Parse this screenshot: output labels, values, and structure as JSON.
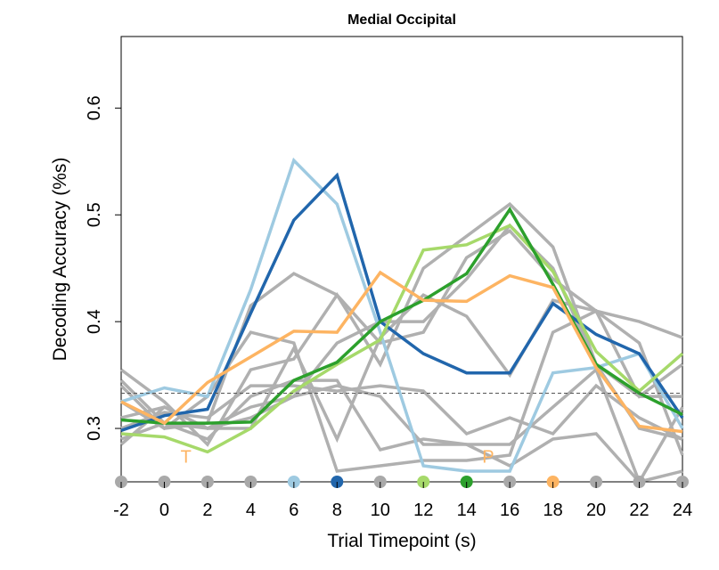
{
  "chart_data": {
    "type": "line",
    "title": "Medial Occipital",
    "xlabel": "Trial Timepoint (s)",
    "ylabel": "Decoding Accuracy (%s)",
    "xlim": [
      -2,
      24
    ],
    "ylim": [
      0.25,
      0.667
    ],
    "xticks": [
      -2,
      0,
      2,
      4,
      6,
      8,
      10,
      12,
      14,
      16,
      18,
      20,
      22,
      24
    ],
    "yticks": [
      0.3,
      0.4,
      0.5,
      0.6
    ],
    "ytick_labels": [
      "0.3",
      "0.4",
      "0.5",
      "0.6"
    ],
    "grid": false,
    "chance_level": 0.333,
    "annotations": [
      {
        "text": "T",
        "x": 1,
        "y": 0.268,
        "color": "#fdb462"
      },
      {
        "text": "P",
        "x": 15,
        "y": 0.268,
        "color": "#fdb462"
      }
    ],
    "x": [
      -2,
      0,
      2,
      4,
      6,
      8,
      10,
      12,
      14,
      16,
      18,
      20,
      22,
      24
    ],
    "timepoint_markers": [
      {
        "x": -2,
        "color": "#a9a9a9"
      },
      {
        "x": 0,
        "color": "#a9a9a9"
      },
      {
        "x": 2,
        "color": "#a9a9a9"
      },
      {
        "x": 4,
        "color": "#a9a9a9"
      },
      {
        "x": 6,
        "color": "#9ecae1"
      },
      {
        "x": 8,
        "color": "#2166ac"
      },
      {
        "x": 10,
        "color": "#a9a9a9"
      },
      {
        "x": 12,
        "color": "#a6d96a"
      },
      {
        "x": 14,
        "color": "#2ca02c"
      },
      {
        "x": 16,
        "color": "#a9a9a9"
      },
      {
        "x": 18,
        "color": "#fdb462"
      },
      {
        "x": 20,
        "color": "#a9a9a9"
      },
      {
        "x": 22,
        "color": "#a9a9a9"
      },
      {
        "x": 24,
        "color": "#a9a9a9"
      }
    ],
    "series": [
      {
        "color": "#b0b0b0",
        "values": [
          0.355,
          0.325,
          0.285,
          0.355,
          0.365,
          0.425,
          0.36,
          0.45,
          0.48,
          0.51,
          0.47,
          0.36,
          0.3,
          0.29
        ]
      },
      {
        "color": "#b0b0b0",
        "values": [
          0.34,
          0.3,
          0.305,
          0.415,
          0.445,
          0.425,
          0.38,
          0.39,
          0.46,
          0.485,
          0.44,
          0.41,
          0.4,
          0.385
        ]
      },
      {
        "color": "#b0b0b0",
        "values": [
          0.325,
          0.3,
          0.33,
          0.39,
          0.38,
          0.26,
          0.265,
          0.27,
          0.27,
          0.275,
          0.39,
          0.41,
          0.33,
          0.36
        ]
      },
      {
        "color": "#b0b0b0",
        "values": [
          0.31,
          0.32,
          0.3,
          0.3,
          0.375,
          0.29,
          0.385,
          0.425,
          0.405,
          0.35,
          0.42,
          0.41,
          0.38,
          0.275
        ]
      },
      {
        "color": "#b0b0b0",
        "values": [
          0.3,
          0.315,
          0.31,
          0.34,
          0.34,
          0.335,
          0.34,
          0.335,
          0.295,
          0.31,
          0.295,
          0.34,
          0.31,
          0.29
        ]
      },
      {
        "color": "#b0b0b0",
        "values": [
          0.29,
          0.305,
          0.29,
          0.33,
          0.345,
          0.345,
          0.28,
          0.29,
          0.285,
          0.285,
          0.32,
          0.355,
          0.25,
          0.26
        ]
      },
      {
        "color": "#b0b0b0",
        "values": [
          0.285,
          0.32,
          0.3,
          0.32,
          0.33,
          0.34,
          0.33,
          0.285,
          0.285,
          0.265,
          0.29,
          0.295,
          0.25,
          0.32
        ]
      },
      {
        "color": "#b0b0b0",
        "values": [
          0.345,
          0.305,
          0.3,
          0.31,
          0.33,
          0.38,
          0.4,
          0.4,
          0.44,
          0.49,
          0.45,
          0.36,
          0.33,
          0.33
        ]
      },
      {
        "color": "#9ecae1",
        "values": [
          0.325,
          0.338,
          0.33,
          0.43,
          0.551,
          0.51,
          0.39,
          0.265,
          0.26,
          0.26,
          0.352,
          0.357,
          0.37,
          0.3
        ]
      },
      {
        "color": "#2166ac",
        "values": [
          0.298,
          0.312,
          0.318,
          0.408,
          0.495,
          0.537,
          0.4,
          0.37,
          0.352,
          0.352,
          0.417,
          0.388,
          0.37,
          0.31
        ]
      },
      {
        "color": "#a6d96a",
        "values": [
          0.295,
          0.292,
          0.278,
          0.3,
          0.335,
          0.36,
          0.383,
          0.467,
          0.472,
          0.49,
          0.447,
          0.372,
          0.335,
          0.37
        ]
      },
      {
        "color": "#2ca02c",
        "values": [
          0.308,
          0.305,
          0.305,
          0.306,
          0.345,
          0.362,
          0.4,
          0.42,
          0.445,
          0.505,
          0.435,
          0.36,
          0.333,
          0.313
        ]
      },
      {
        "color": "#fdb462",
        "values": [
          0.325,
          0.305,
          0.343,
          0.367,
          0.391,
          0.39,
          0.446,
          0.42,
          0.419,
          0.443,
          0.432,
          0.357,
          0.302,
          0.297
        ]
      }
    ]
  }
}
